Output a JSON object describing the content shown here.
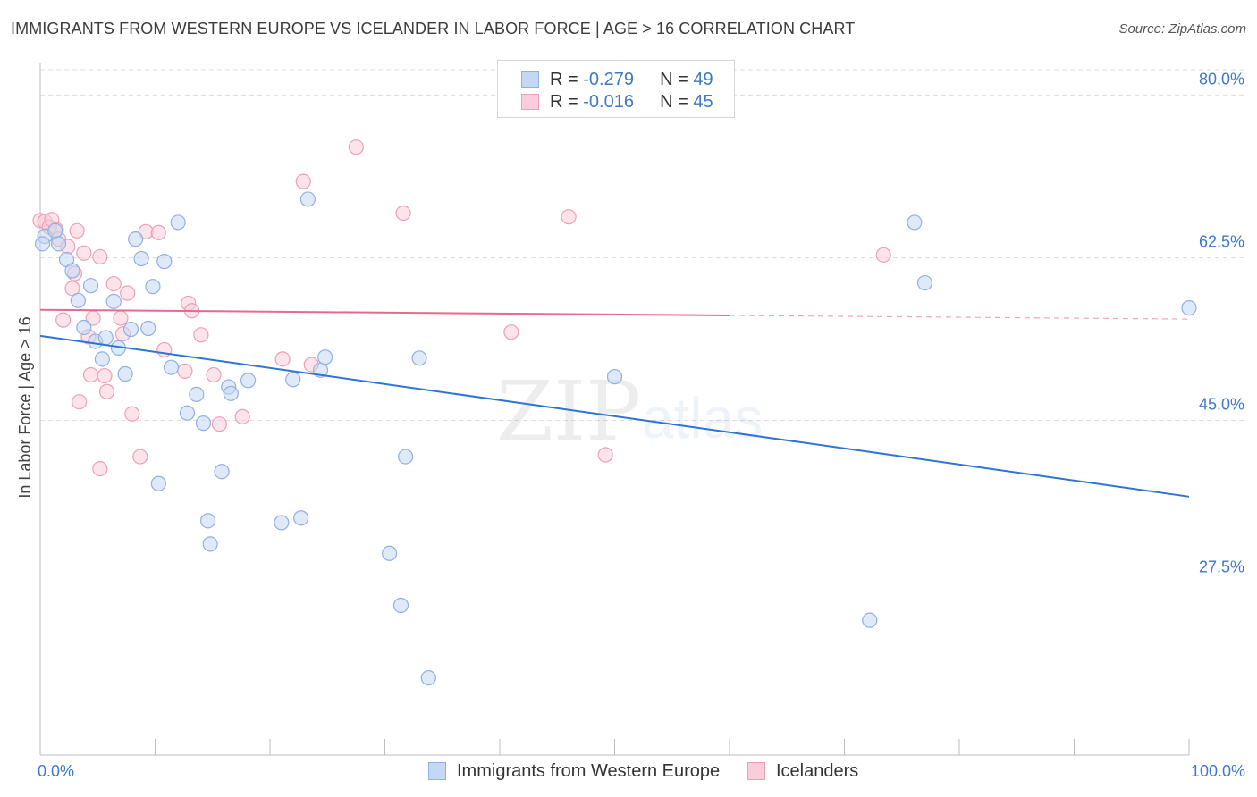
{
  "title": "IMMIGRANTS FROM WESTERN EUROPE VS ICELANDER IN LABOR FORCE | AGE > 16 CORRELATION CHART",
  "source": "Source: ZipAtlas.com",
  "watermark": {
    "zip": "ZIP",
    "atlas": "atlas"
  },
  "legend_top": {
    "rows": [
      {
        "r_label": "R = ",
        "r_value": "-0.279",
        "n_label": "N = ",
        "n_value": "49"
      },
      {
        "r_label": "R = ",
        "r_value": "-0.016",
        "n_label": "N = ",
        "n_value": "45"
      }
    ]
  },
  "legend_bottom": [
    {
      "label": "Immigrants from Western Europe"
    },
    {
      "label": "Icelanders"
    }
  ],
  "colors": {
    "blue_fill": "#c4d7f3",
    "blue_stroke": "#8fb1e3",
    "blue_line": "#2d74d6",
    "pink_fill": "#f9cdd9",
    "pink_stroke": "#ee9fb6",
    "pink_line": "#e8698f",
    "tick_text": "#3e79c9"
  },
  "chart_data": {
    "type": "scatter",
    "title": "IMMIGRANTS FROM WESTERN EUROPE VS ICELANDER IN LABOR FORCE | AGE > 16 CORRELATION CHART",
    "xlabel": "",
    "ylabel": "In Labor Force | Age > 16",
    "xlim": [
      0,
      100
    ],
    "ylim": [
      9.0,
      83.5
    ],
    "x_ticks": [
      0,
      10,
      20,
      30,
      40,
      50,
      60,
      70,
      80,
      90,
      100
    ],
    "x_tick_labels": [
      {
        "value": 0,
        "label": "0.0%"
      },
      {
        "value": 100,
        "label": "100.0%"
      }
    ],
    "y_ticks": [
      27.5,
      45.0,
      62.5,
      80.0
    ],
    "y_tick_labels": [
      "27.5%",
      "45.0%",
      "62.5%",
      "80.0%"
    ],
    "grid": true,
    "legend_position": "top-center",
    "series": [
      {
        "name": "Immigrants from Western Europe",
        "color": "blue",
        "r": -0.279,
        "n": 49,
        "trend": {
          "x": [
            0,
            100
          ],
          "y": [
            54.1,
            36.8
          ]
        },
        "points": [
          [
            0.4,
            64.8
          ],
          [
            1.3,
            65.4
          ],
          [
            1.6,
            64.0
          ],
          [
            2.3,
            62.3
          ],
          [
            2.8,
            61.1
          ],
          [
            3.3,
            57.9
          ],
          [
            3.8,
            55.0
          ],
          [
            4.4,
            59.5
          ],
          [
            4.8,
            53.5
          ],
          [
            5.4,
            51.6
          ],
          [
            5.7,
            53.9
          ],
          [
            6.4,
            57.8
          ],
          [
            6.8,
            52.8
          ],
          [
            7.4,
            50.0
          ],
          [
            7.9,
            54.8
          ],
          [
            8.3,
            64.5
          ],
          [
            8.8,
            62.4
          ],
          [
            9.4,
            54.9
          ],
          [
            9.8,
            59.4
          ],
          [
            10.3,
            38.2
          ],
          [
            10.8,
            62.1
          ],
          [
            11.4,
            50.7
          ],
          [
            12.0,
            66.3
          ],
          [
            12.8,
            45.8
          ],
          [
            13.6,
            47.8
          ],
          [
            14.2,
            44.7
          ],
          [
            14.6,
            34.2
          ],
          [
            14.8,
            31.7
          ],
          [
            15.8,
            39.5
          ],
          [
            16.4,
            48.6
          ],
          [
            16.6,
            47.9
          ],
          [
            18.1,
            49.3
          ],
          [
            21.0,
            34.0
          ],
          [
            22.0,
            49.4
          ],
          [
            22.7,
            34.5
          ],
          [
            23.3,
            68.8
          ],
          [
            24.4,
            50.4
          ],
          [
            24.8,
            51.8
          ],
          [
            30.4,
            30.7
          ],
          [
            31.4,
            25.1
          ],
          [
            31.8,
            41.1
          ],
          [
            33.0,
            51.7
          ],
          [
            33.8,
            17.3
          ],
          [
            50.0,
            49.7
          ],
          [
            72.2,
            23.5
          ],
          [
            76.1,
            66.3
          ],
          [
            77.0,
            59.8
          ],
          [
            100.0,
            57.1
          ],
          [
            0.2,
            64.0
          ]
        ]
      },
      {
        "name": "Icelanders",
        "color": "pink",
        "r": -0.016,
        "n": 45,
        "trend": {
          "x": [
            0,
            100
          ],
          "y": [
            56.9,
            55.9
          ]
        },
        "points": [
          [
            0.0,
            66.5
          ],
          [
            0.4,
            66.4
          ],
          [
            0.8,
            65.8
          ],
          [
            1.0,
            66.6
          ],
          [
            1.4,
            65.5
          ],
          [
            1.6,
            64.5
          ],
          [
            2.0,
            55.8
          ],
          [
            2.4,
            63.7
          ],
          [
            2.8,
            59.2
          ],
          [
            3.0,
            60.8
          ],
          [
            3.2,
            65.4
          ],
          [
            3.4,
            47.0
          ],
          [
            3.8,
            63.0
          ],
          [
            4.2,
            54.0
          ],
          [
            4.4,
            49.9
          ],
          [
            4.6,
            56.0
          ],
          [
            5.2,
            62.6
          ],
          [
            5.2,
            39.8
          ],
          [
            5.6,
            49.8
          ],
          [
            5.8,
            48.1
          ],
          [
            6.4,
            59.7
          ],
          [
            7.0,
            56.0
          ],
          [
            7.2,
            54.3
          ],
          [
            7.6,
            58.7
          ],
          [
            8.0,
            45.7
          ],
          [
            8.7,
            41.1
          ],
          [
            9.2,
            65.3
          ],
          [
            10.3,
            65.2
          ],
          [
            10.8,
            52.6
          ],
          [
            12.6,
            50.3
          ],
          [
            12.9,
            57.6
          ],
          [
            13.2,
            56.8
          ],
          [
            14.0,
            54.2
          ],
          [
            15.1,
            49.9
          ],
          [
            15.6,
            44.6
          ],
          [
            17.6,
            45.4
          ],
          [
            21.1,
            51.6
          ],
          [
            22.9,
            70.7
          ],
          [
            23.6,
            51.0
          ],
          [
            27.5,
            74.4
          ],
          [
            31.6,
            67.3
          ],
          [
            41.0,
            54.5
          ],
          [
            46.0,
            66.9
          ],
          [
            49.2,
            41.3
          ],
          [
            73.4,
            62.8
          ]
        ]
      }
    ]
  }
}
